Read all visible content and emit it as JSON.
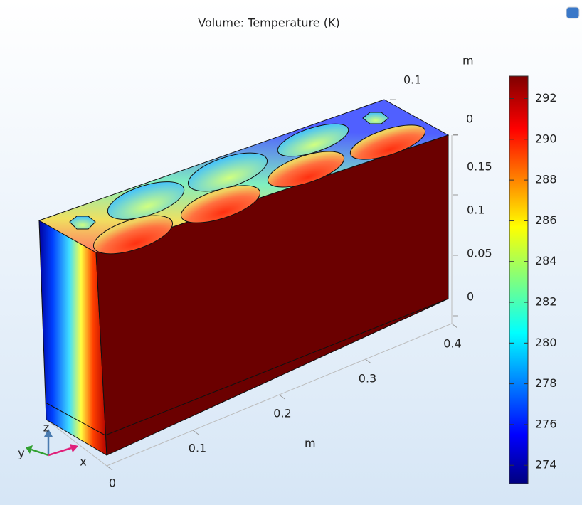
{
  "title": "Volume: Temperature (K)",
  "colorbar": {
    "range": [
      273.1,
      293.1
    ],
    "ticks": [
      274,
      276,
      278,
      280,
      282,
      284,
      286,
      288,
      290,
      292
    ]
  },
  "axes": {
    "x": {
      "label": "m",
      "ticks": [
        0,
        0.1,
        0.2,
        0.3,
        0.4
      ]
    },
    "y": {
      "label": "m",
      "ticks": [
        0,
        0.1
      ]
    },
    "z": {
      "ticks": [
        0,
        0.05,
        0.1,
        0.15
      ]
    }
  },
  "triad": {
    "x": "x",
    "y": "y",
    "z": "z"
  }
}
